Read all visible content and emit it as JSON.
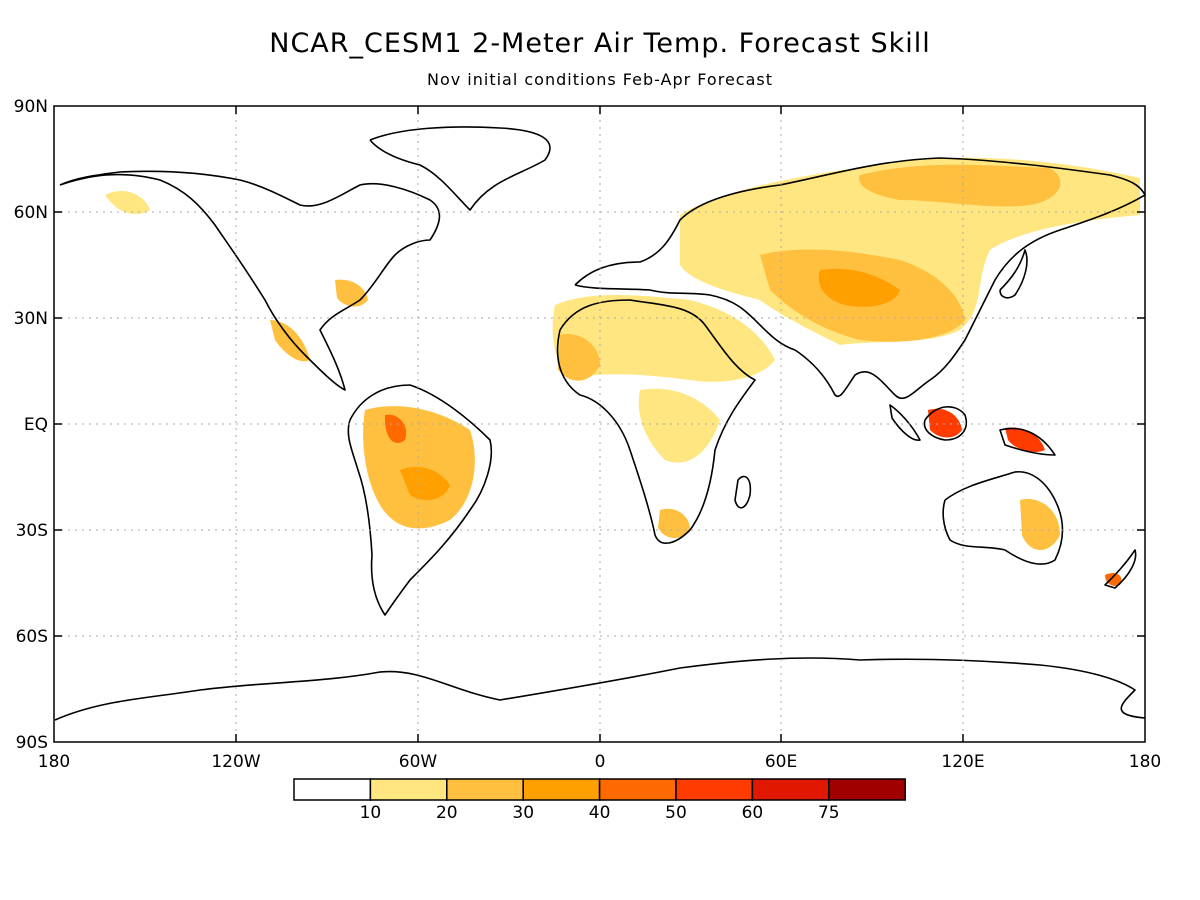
{
  "header": {
    "title": "NCAR_CESM1 2-Meter Air Temp. Forecast Skill",
    "subtitle": "Nov initial conditions  Feb-Apr Forecast"
  },
  "axes": {
    "lat_labels": [
      "90N",
      "60N",
      "30N",
      "EQ",
      "30S",
      "60S",
      "90S"
    ],
    "lon_labels": [
      "180",
      "120W",
      "60W",
      "0",
      "60E",
      "120E",
      "180"
    ]
  },
  "colorbar": {
    "labels": [
      "10",
      "20",
      "30",
      "40",
      "50",
      "60",
      "75"
    ],
    "colors": [
      "#ffffff",
      "#ffe680",
      "#ffc040",
      "#ffa000",
      "#ff6a00",
      "#ff3c00",
      "#e01800",
      "#a00000"
    ]
  },
  "colors": {
    "low": "#ffe680",
    "mid": "#ffc040",
    "high": "#ffa000",
    "vhigh": "#ff6a00",
    "max": "#ff3c00"
  }
}
